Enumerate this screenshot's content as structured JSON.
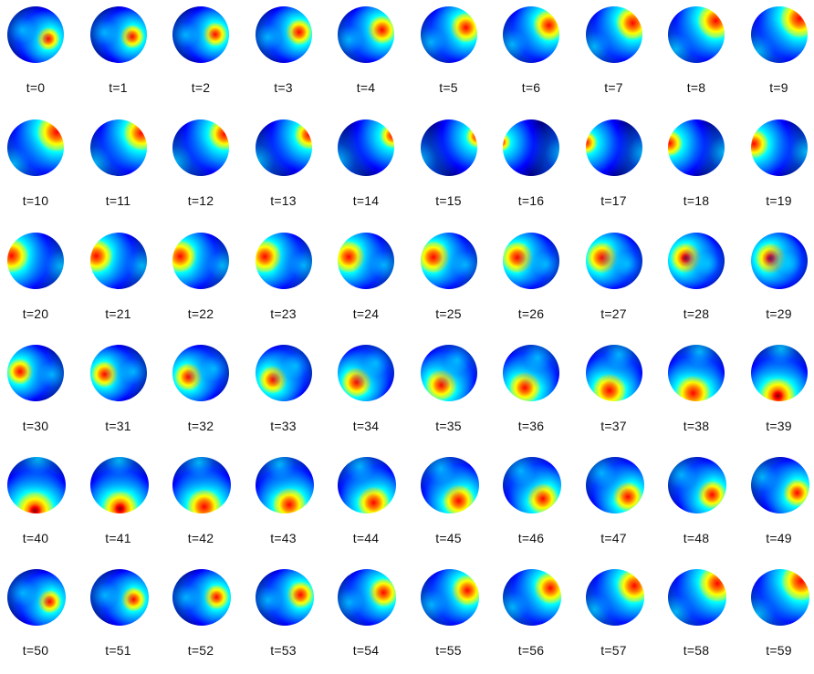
{
  "figure": {
    "labels": [
      "t=0",
      "t=1",
      "t=2",
      "t=3",
      "t=4",
      "t=5",
      "t=6",
      "t=7",
      "t=8",
      "t=9",
      "t=10",
      "t=11",
      "t=12",
      "t=13",
      "t=14",
      "t=15",
      "t=16",
      "t=17",
      "t=18",
      "t=19",
      "t=20",
      "t=21",
      "t=22",
      "t=23",
      "t=24",
      "t=25",
      "t=26",
      "t=27",
      "t=28",
      "t=29",
      "t=30",
      "t=31",
      "t=32",
      "t=33",
      "t=34",
      "t=35",
      "t=36",
      "t=37",
      "t=38",
      "t=39",
      "t=40",
      "t=41",
      "t=42",
      "t=43",
      "t=44",
      "t=45",
      "t=46",
      "t=47",
      "t=48",
      "t=49",
      "t=50",
      "t=51",
      "t=52",
      "t=53",
      "t=54",
      "t=55",
      "t=56",
      "t=57",
      "t=58",
      "t=59"
    ],
    "colormap": [
      "#00007f",
      "#0000ff",
      "#0080ff",
      "#00ffff",
      "#80ff80",
      "#ffff00",
      "#ff8000",
      "#ff0000",
      "#7f0000"
    ]
  }
}
